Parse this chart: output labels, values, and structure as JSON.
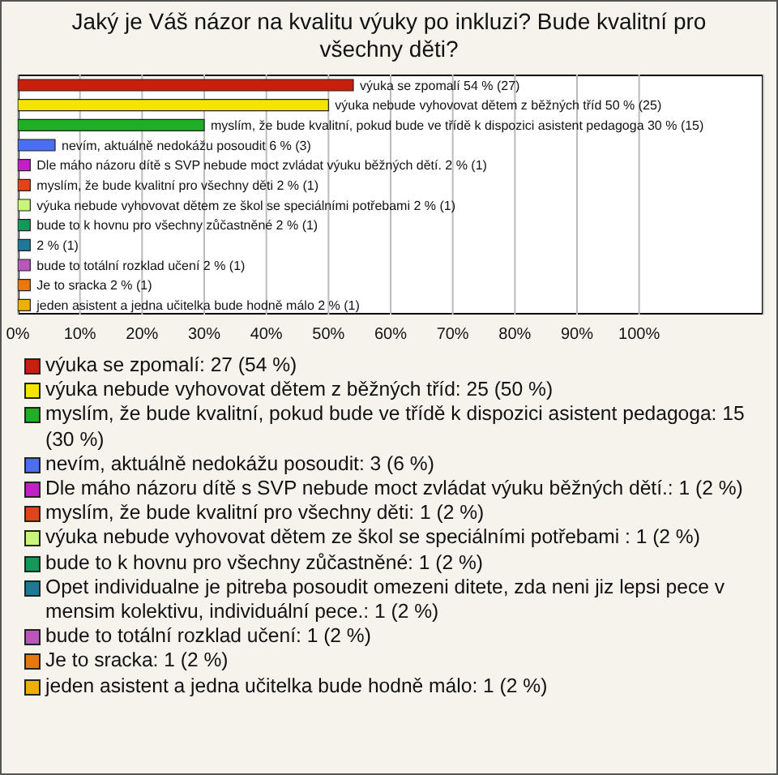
{
  "chart_data": {
    "type": "bar",
    "orientation": "horizontal",
    "stacked": true,
    "title": "Jaký je Váš názor na kvalitu výuky po inkluzi? Bude kvalitní pro všechny děti?",
    "categories": [
      null,
      null,
      null,
      null,
      null,
      null,
      null,
      null,
      null,
      null,
      null,
      null
    ],
    "xlim": [
      0,
      120
    ],
    "xticks": [
      {
        "value": 0,
        "label": "0%"
      },
      {
        "value": 10,
        "label": "10%"
      },
      {
        "value": 20,
        "label": "20%"
      },
      {
        "value": 30,
        "label": "30%"
      },
      {
        "value": 40,
        "label": "40%"
      },
      {
        "value": 50,
        "label": "50%"
      },
      {
        "value": 60,
        "label": "60%"
      },
      {
        "value": 70,
        "label": "70%"
      },
      {
        "value": 80,
        "label": "80%"
      },
      {
        "value": 90,
        "label": "90%"
      },
      {
        "value": 100,
        "label": "100%"
      }
    ],
    "grid": "x",
    "legend": "bottom",
    "series": [
      {
        "name": "výuka se zpomalí: 27 (54 %)",
        "color": "#c8200f",
        "values": [
          54,
          null,
          null,
          null,
          null,
          null,
          null,
          null,
          null,
          null,
          null,
          null
        ],
        "value_labels": [
          "výuka se zpomalí 54 % (27)",
          null,
          null,
          null,
          null,
          null,
          null,
          null,
          null,
          null,
          null,
          null
        ]
      },
      {
        "name": "výuka nebude vyhovovat dětem z běžných tříd: 25 (50 %)",
        "color": "#f5e400",
        "values": [
          null,
          50,
          null,
          null,
          null,
          null,
          null,
          null,
          null,
          null,
          null,
          null
        ],
        "value_labels": [
          null,
          "výuka nebude vyhovovat dětem z běžných tříd 50 % (25)",
          null,
          null,
          null,
          null,
          null,
          null,
          null,
          null,
          null,
          null
        ]
      },
      {
        "name": "myslím, že bude kvalitní, pokud bude ve třídě k dispozici asistent pedagoga: 15 (30 %)",
        "color": "#1fae26",
        "values": [
          null,
          null,
          30,
          null,
          null,
          null,
          null,
          null,
          null,
          null,
          null,
          null
        ],
        "value_labels": [
          null,
          null,
          "myslím, že bude kvalitní, pokud bude ve třídě k dispozici asistent pedagoga 30 % (15)",
          null,
          null,
          null,
          null,
          null,
          null,
          null,
          null,
          null
        ]
      },
      {
        "name": "nevím, aktuálně nedokážu posoudit: 3 (6 %)",
        "color": "#4a6ff0",
        "values": [
          null,
          null,
          null,
          6,
          null,
          null,
          null,
          null,
          null,
          null,
          null,
          null
        ],
        "value_labels": [
          null,
          null,
          null,
          "nevím, aktuálně nedokážu posoudit 6 % (3)",
          null,
          null,
          null,
          null,
          null,
          null,
          null,
          null
        ]
      },
      {
        "name": "Dle máho názoru dítě s SVP nebude moct zvládat výuku běžných dětí.: 1 (2 %)",
        "color": "#c21fc8",
        "values": [
          null,
          null,
          null,
          null,
          2,
          null,
          null,
          null,
          null,
          null,
          null,
          null
        ],
        "value_labels": [
          null,
          null,
          null,
          null,
          "Dle máho názoru dítě s SVP nebude moct zvládat výuku běžných dětí. 2 % (1)",
          null,
          null,
          null,
          null,
          null,
          null,
          null
        ]
      },
      {
        "name": "myslím, že bude kvalitní pro všechny děti: 1 (2 %)",
        "color": "#e0441a",
        "values": [
          null,
          null,
          null,
          null,
          null,
          2,
          null,
          null,
          null,
          null,
          null,
          null
        ],
        "value_labels": [
          null,
          null,
          null,
          null,
          null,
          "myslím, že bude kvalitní pro všechny děti 2 % (1)",
          null,
          null,
          null,
          null,
          null,
          null
        ]
      },
      {
        "name": "výuka nebude vyhovovat dětem ze škol se speciálními potřebami : 1 (2 %)",
        "color": "#c8f57a",
        "values": [
          null,
          null,
          null,
          null,
          null,
          null,
          2,
          null,
          null,
          null,
          null,
          null
        ],
        "value_labels": [
          null,
          null,
          null,
          null,
          null,
          null,
          "výuka nebude vyhovovat dětem ze škol se speciálními potřebami  2 % (1)",
          null,
          null,
          null,
          null,
          null
        ]
      },
      {
        "name": "bude to k hovnu pro všechny zůčastněné: 1 (2 %)",
        "color": "#139a5a",
        "values": [
          null,
          null,
          null,
          null,
          null,
          null,
          null,
          2,
          null,
          null,
          null,
          null
        ],
        "value_labels": [
          null,
          null,
          null,
          null,
          null,
          null,
          null,
          "bude to k hovnu pro všechny zůčastněné 2 % (1)",
          null,
          null,
          null,
          null
        ]
      },
      {
        "name": "Opet individualne je pitreba posoudit omezeni ditete, zda neni jiz lepsi pece v mensim kolektivu, individuální pece.: 1 (2 %)",
        "color": "#1f7896",
        "values": [
          null,
          null,
          null,
          null,
          null,
          null,
          null,
          null,
          2,
          null,
          null,
          null
        ],
        "value_labels": [
          null,
          null,
          null,
          null,
          null,
          null,
          null,
          null,
          "2 % (1)",
          null,
          null,
          null
        ]
      },
      {
        "name": "bude to totální rozklad učení: 1 (2 %)",
        "color": "#b957bd",
        "values": [
          null,
          null,
          null,
          null,
          null,
          null,
          null,
          null,
          null,
          2,
          null,
          null
        ],
        "value_labels": [
          null,
          null,
          null,
          null,
          null,
          null,
          null,
          null,
          null,
          "bude to totální rozklad učení 2 % (1)",
          null,
          null
        ]
      },
      {
        "name": "Je to sracka: 1 (2 %)",
        "color": "#e8780c",
        "values": [
          null,
          null,
          null,
          null,
          null,
          null,
          null,
          null,
          null,
          null,
          2,
          null
        ],
        "value_labels": [
          null,
          null,
          null,
          null,
          null,
          null,
          null,
          null,
          null,
          null,
          "Je to sracka 2 % (1)",
          null
        ]
      },
      {
        "name": "jeden asistent a jedna učitelka bude hodně málo: 1 (2 %)",
        "color": "#eeb000",
        "values": [
          null,
          null,
          null,
          null,
          null,
          null,
          null,
          null,
          null,
          null,
          null,
          2
        ],
        "value_labels": [
          null,
          null,
          null,
          null,
          null,
          null,
          null,
          null,
          null,
          null,
          null,
          "jeden asistent a jedna učitelka bude hodně málo 2 % (1)"
        ]
      }
    ]
  }
}
